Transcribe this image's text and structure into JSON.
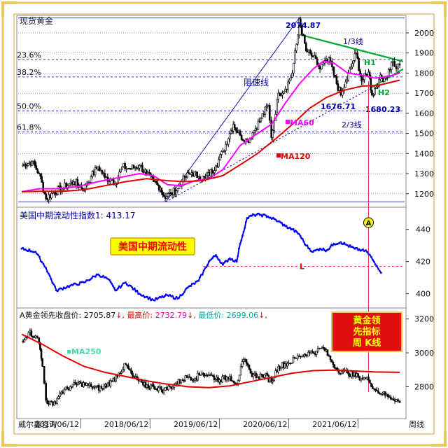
{
  "colors": {
    "frame": "#e8c85a",
    "price": "#000000",
    "ma60": "#ff00ff",
    "ma120": "#e00000",
    "ma250": "#e00000",
    "grid_blue": "#0000aa",
    "liquidity": "#0000ff",
    "trend_green": "#00aa33",
    "axis": "#333333",
    "badge_bg": "#ffff00",
    "badge_text": "#ff0000",
    "dash_red": "#ff0000"
  },
  "chart_data": [
    {
      "type": "line",
      "title": "现货黄金",
      "panel": "top",
      "ylim": [
        1140,
        2080
      ],
      "yticks": [
        1200,
        1300,
        1400,
        1500,
        1600,
        1700,
        1800,
        1900,
        2000
      ],
      "fib_levels": [
        {
          "label": "23.6%",
          "value": 1866
        },
        {
          "label": "38.2%",
          "value": 1781
        },
        {
          "label": "50.0%",
          "value": 1612
        },
        {
          "label": "61.8%",
          "value": 1508
        }
      ],
      "annotations": {
        "high_label": "2074.87",
        "low1_label": "1676.71",
        "low2_label": "1680.23",
        "one_third_line": "1/3线",
        "two_third_line": "2/3线",
        "resistance_line": "阻速线",
        "h1": "H1",
        "h2": "H2",
        "ma60_label": "MA60",
        "ma120_label": "MA120"
      },
      "series": [
        {
          "name": "",
          "kind": "price",
          "points": [
            [
              2016.6,
              1340
            ],
            [
              2016.75,
              1360
            ],
            [
              2016.85,
              1300
            ],
            [
              2016.95,
              1175
            ],
            [
              2017.05,
              1205
            ],
            [
              2017.2,
              1230
            ],
            [
              2017.35,
              1260
            ],
            [
              2017.5,
              1225
            ],
            [
              2017.6,
              1285
            ],
            [
              2017.7,
              1335
            ],
            [
              2017.8,
              1280
            ],
            [
              2017.9,
              1270
            ],
            [
              2017.95,
              1250
            ],
            [
              2018.05,
              1335
            ],
            [
              2018.15,
              1325
            ],
            [
              2018.3,
              1340
            ],
            [
              2018.4,
              1300
            ],
            [
              2018.5,
              1260
            ],
            [
              2018.6,
              1230
            ],
            [
              2018.65,
              1185
            ],
            [
              2018.75,
              1200
            ],
            [
              2018.85,
              1225
            ],
            [
              2018.95,
              1280
            ],
            [
              2019.05,
              1305
            ],
            [
              2019.15,
              1285
            ],
            [
              2019.25,
              1275
            ],
            [
              2019.4,
              1340
            ],
            [
              2019.5,
              1410
            ],
            [
              2019.6,
              1500
            ],
            [
              2019.65,
              1545
            ],
            [
              2019.75,
              1490
            ],
            [
              2019.85,
              1460
            ],
            [
              2019.95,
              1515
            ],
            [
              2020.05,
              1575
            ],
            [
              2020.15,
              1640
            ],
            [
              2020.2,
              1480
            ],
            [
              2020.3,
              1700
            ],
            [
              2020.4,
              1720
            ],
            [
              2020.5,
              1800
            ],
            [
              2020.58,
              1990
            ],
            [
              2020.6,
              2070
            ],
            [
              2020.7,
              1910
            ],
            [
              2020.8,
              1880
            ],
            [
              2020.9,
              1820
            ],
            [
              2020.95,
              1850
            ],
            [
              2021.05,
              1860
            ],
            [
              2021.1,
              1790
            ],
            [
              2021.2,
              1690
            ],
            [
              2021.25,
              1730
            ],
            [
              2021.35,
              1830
            ],
            [
              2021.42,
              1900
            ],
            [
              2021.5,
              1760
            ],
            [
              2021.6,
              1805
            ],
            [
              2021.65,
              1690
            ],
            [
              2021.75,
              1770
            ],
            [
              2021.85,
              1780
            ],
            [
              2021.95,
              1860
            ],
            [
              2022.0,
              1820
            ],
            [
              2022.05,
              1840
            ]
          ]
        },
        {
          "name": "MA60",
          "kind": "ma60",
          "points": [
            [
              2016.6,
              1210
            ],
            [
              2016.85,
              1225
            ],
            [
              2017.1,
              1225
            ],
            [
              2017.4,
              1235
            ],
            [
              2017.7,
              1260
            ],
            [
              2018.0,
              1280
            ],
            [
              2018.3,
              1300
            ],
            [
              2018.5,
              1290
            ],
            [
              2018.7,
              1245
            ],
            [
              2018.9,
              1240
            ],
            [
              2019.1,
              1265
            ],
            [
              2019.3,
              1275
            ],
            [
              2019.5,
              1320
            ],
            [
              2019.75,
              1440
            ],
            [
              2020.0,
              1500
            ],
            [
              2020.2,
              1545
            ],
            [
              2020.4,
              1650
            ],
            [
              2020.6,
              1745
            ],
            [
              2020.8,
              1820
            ],
            [
              2020.95,
              1860
            ],
            [
              2021.1,
              1850
            ],
            [
              2021.3,
              1800
            ],
            [
              2021.5,
              1790
            ],
            [
              2021.7,
              1775
            ],
            [
              2021.9,
              1785
            ],
            [
              2022.05,
              1800
            ]
          ]
        },
        {
          "name": "MA120",
          "kind": "ma120",
          "points": [
            [
              2016.6,
              1210
            ],
            [
              2016.9,
              1212
            ],
            [
              2017.2,
              1212
            ],
            [
              2017.5,
              1220
            ],
            [
              2017.8,
              1240
            ],
            [
              2018.1,
              1260
            ],
            [
              2018.4,
              1275
            ],
            [
              2018.7,
              1265
            ],
            [
              2018.95,
              1260
            ],
            [
              2019.2,
              1265
            ],
            [
              2019.5,
              1290
            ],
            [
              2019.8,
              1355
            ],
            [
              2020.0,
              1400
            ],
            [
              2020.25,
              1470
            ],
            [
              2020.5,
              1545
            ],
            [
              2020.75,
              1625
            ],
            [
              2021.0,
              1680
            ],
            [
              2021.25,
              1715
            ],
            [
              2021.5,
              1735
            ],
            [
              2021.75,
              1740
            ],
            [
              2022.05,
              1765
            ]
          ]
        }
      ],
      "trendlines": [
        {
          "name": "resistance",
          "from": [
            2018.68,
            1160
          ],
          "to": [
            2020.6,
            2074
          ]
        },
        {
          "name": "one_third",
          "from": [
            2018.68,
            1160
          ],
          "to": [
            2021.6,
            1720
          ]
        },
        {
          "name": "two_third",
          "from": [
            2018.68,
            1160
          ],
          "to": [
            2022.05,
            1805
          ]
        },
        {
          "name": "h1_green",
          "from": [
            2020.62,
            1990
          ],
          "to": [
            2022.1,
            1858
          ]
        },
        {
          "name": "h2_green",
          "from": [
            2021.65,
            1730
          ],
          "to": [
            2022.1,
            1820
          ]
        }
      ],
      "marker_x": 2021.6
    },
    {
      "type": "line",
      "title": "美国中期流动性指数1",
      "panel": "middle",
      "value_label": "413.17",
      "badge": "美国中期流动性",
      "circle_label": "A",
      "level_label": "L",
      "level_value": 417,
      "ylim": [
        392,
        452
      ],
      "yticks": [
        400,
        420,
        440
      ],
      "series": [
        {
          "name": "",
          "points": [
            [
              2016.6,
              428
            ],
            [
              2016.8,
              426
            ],
            [
              2016.95,
              416
            ],
            [
              2017.1,
              402
            ],
            [
              2017.3,
              405
            ],
            [
              2017.5,
              407
            ],
            [
              2017.7,
              412
            ],
            [
              2017.85,
              409
            ],
            [
              2017.95,
              402
            ],
            [
              2018.1,
              407
            ],
            [
              2018.3,
              400
            ],
            [
              2018.5,
              396
            ],
            [
              2018.7,
              399
            ],
            [
              2018.85,
              397
            ],
            [
              2019.0,
              404
            ],
            [
              2019.15,
              408
            ],
            [
              2019.3,
              420
            ],
            [
              2019.4,
              424
            ],
            [
              2019.5,
              418
            ],
            [
              2019.6,
              422
            ],
            [
              2019.7,
              420
            ],
            [
              2019.75,
              431
            ],
            [
              2019.85,
              447
            ],
            [
              2019.95,
              449
            ],
            [
              2020.05,
              449
            ],
            [
              2020.15,
              448
            ],
            [
              2020.3,
              445
            ],
            [
              2020.4,
              442
            ],
            [
              2020.5,
              440
            ],
            [
              2020.6,
              437
            ],
            [
              2020.7,
              430
            ],
            [
              2020.8,
              426
            ],
            [
              2020.9,
              428
            ],
            [
              2021.0,
              427
            ],
            [
              2021.1,
              431
            ],
            [
              2021.2,
              432
            ],
            [
              2021.3,
              430
            ],
            [
              2021.4,
              428
            ],
            [
              2021.5,
              427
            ],
            [
              2021.58,
              426
            ],
            [
              2021.62,
              424
            ],
            [
              2021.7,
              418
            ],
            [
              2021.78,
              413
            ]
          ]
        }
      ]
    },
    {
      "type": "line",
      "title": "A黄金领先收盘价",
      "panel": "bottom",
      "readout": {
        "close_label": "A黄金领先收盘价:",
        "close": "2705.87",
        "high_label": "最高价:",
        "high": "2732.79",
        "low_label": "最低价:",
        "low": "2699.06"
      },
      "badge_lines": [
        "黄金领",
        "先指标",
        "周 K线"
      ],
      "ma_label": "MA250",
      "ylim": [
        2620,
        3240
      ],
      "yticks": [
        2800,
        3000,
        3200
      ],
      "series": [
        {
          "name": "",
          "kind": "price",
          "points": [
            [
              2016.6,
              3070
            ],
            [
              2016.7,
              3120
            ],
            [
              2016.8,
              3100
            ],
            [
              2016.85,
              3060
            ],
            [
              2016.9,
              2920
            ],
            [
              2016.95,
              2720
            ],
            [
              2017.05,
              2690
            ],
            [
              2017.15,
              2760
            ],
            [
              2017.3,
              2800
            ],
            [
              2017.45,
              2820
            ],
            [
              2017.6,
              2800
            ],
            [
              2017.75,
              2790
            ],
            [
              2017.9,
              2830
            ],
            [
              2018.0,
              2880
            ],
            [
              2018.1,
              2930
            ],
            [
              2018.2,
              2860
            ],
            [
              2018.35,
              2810
            ],
            [
              2018.5,
              2800
            ],
            [
              2018.65,
              2780
            ],
            [
              2018.8,
              2810
            ],
            [
              2018.9,
              2840
            ],
            [
              2019.0,
              2860
            ],
            [
              2019.1,
              2850
            ],
            [
              2019.2,
              2880
            ],
            [
              2019.3,
              2870
            ],
            [
              2019.45,
              2840
            ],
            [
              2019.6,
              2860
            ],
            [
              2019.7,
              2820
            ],
            [
              2019.8,
              2960
            ],
            [
              2019.9,
              2880
            ],
            [
              2020.0,
              2860
            ],
            [
              2020.1,
              2870
            ],
            [
              2020.2,
              2830
            ],
            [
              2020.3,
              2920
            ],
            [
              2020.45,
              2940
            ],
            [
              2020.6,
              2980
            ],
            [
              2020.75,
              3000
            ],
            [
              2020.85,
              3010
            ],
            [
              2020.95,
              3030
            ],
            [
              2021.05,
              2960
            ],
            [
              2021.15,
              2900
            ],
            [
              2021.3,
              2880
            ],
            [
              2021.45,
              2860
            ],
            [
              2021.6,
              2840
            ],
            [
              2021.7,
              2780
            ],
            [
              2021.8,
              2760
            ],
            [
              2021.9,
              2740
            ],
            [
              2022.0,
              2725
            ],
            [
              2022.05,
              2706
            ]
          ]
        },
        {
          "name": "MA250",
          "kind": "ma250",
          "points": [
            [
              2016.6,
              3110
            ],
            [
              2016.9,
              3050
            ],
            [
              2017.2,
              2980
            ],
            [
              2017.5,
              2920
            ],
            [
              2017.8,
              2885
            ],
            [
              2018.1,
              2860
            ],
            [
              2018.4,
              2835
            ],
            [
              2018.7,
              2815
            ],
            [
              2019.0,
              2800
            ],
            [
              2019.3,
              2795
            ],
            [
              2019.6,
              2805
            ],
            [
              2019.9,
              2830
            ],
            [
              2020.2,
              2855
            ],
            [
              2020.5,
              2880
            ],
            [
              2020.8,
              2895
            ],
            [
              2021.1,
              2898
            ],
            [
              2021.4,
              2893
            ],
            [
              2021.7,
              2887
            ],
            [
              2022.05,
              2885
            ]
          ]
        }
      ]
    }
  ],
  "xaxis": {
    "left_label": "威尔鑫咨询",
    "right_label": "周线",
    "ticks": [
      {
        "x": 2017.45,
        "label": "2017/06/12"
      },
      {
        "x": 2018.45,
        "label": "2018/06/12"
      },
      {
        "x": 2019.45,
        "label": "2019/06/12"
      },
      {
        "x": 2020.45,
        "label": "2020/06/12"
      },
      {
        "x": 2021.45,
        "label": "2021/06/12"
      }
    ]
  }
}
